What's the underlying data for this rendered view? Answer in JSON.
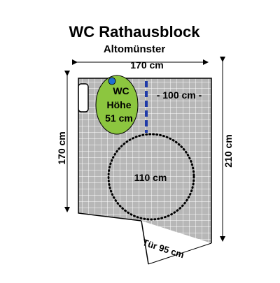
{
  "title": "WC Rathausblock",
  "subtitle": "Altomünster",
  "dimensions": {
    "top_width": "170 cm",
    "left_height": "170 cm",
    "right_height": "210 cm",
    "door": "Tür 95 cm",
    "clearance": "- 100 cm -",
    "turning_circle": "110 cm"
  },
  "wc": {
    "line1": "WC",
    "line2": "Höhe",
    "line3": "51 cm"
  },
  "colors": {
    "floor_fill": "#b7b7b7",
    "grid_line": "#ffffff",
    "wall": "#000000",
    "wc_fill": "#8cc63f",
    "wc_marker": "#1f6fd0",
    "grab_bar": "#1f3aa8"
  }
}
